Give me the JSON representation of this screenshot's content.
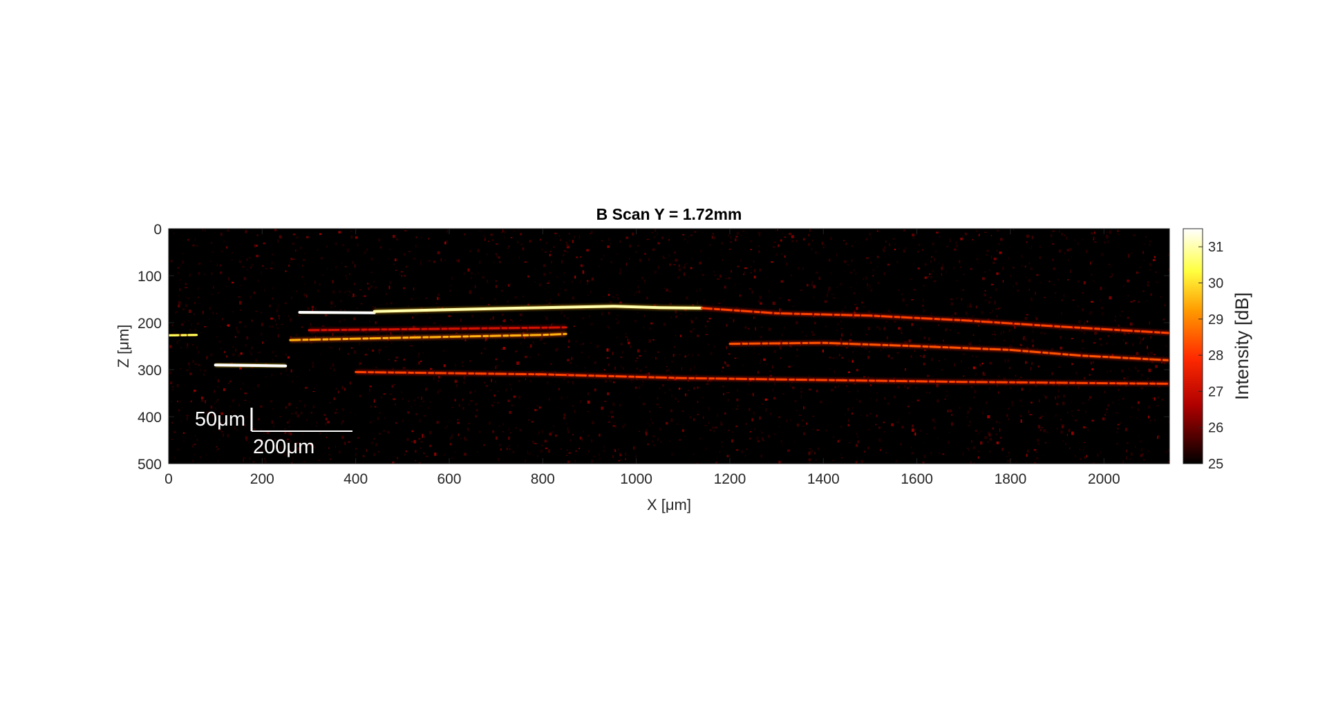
{
  "chart_data": {
    "type": "heatmap",
    "title": "B Scan Y = 1.72mm",
    "xlabel": "X [μm]",
    "ylabel": "Z [μm]",
    "xlim": [
      0,
      2140
    ],
    "ylim": [
      500,
      0
    ],
    "x_ticks": [
      0,
      200,
      400,
      600,
      800,
      1000,
      1200,
      1400,
      1600,
      1800,
      2000
    ],
    "x_tick_labels": [
      "0",
      "200",
      "400",
      "600",
      "800",
      "1000",
      "1200",
      "1400",
      "1600",
      "1800",
      "2000"
    ],
    "y_ticks": [
      0,
      100,
      200,
      300,
      400,
      500
    ],
    "y_tick_labels": [
      "0",
      "100",
      "200",
      "300",
      "400",
      "500"
    ],
    "colormap": "hot",
    "colors": [
      "#000000",
      "#b00000",
      "#ff2a00",
      "#ff9a00",
      "#ffff40",
      "#ffffff"
    ],
    "colorbar": {
      "label": "Intensity [dB]",
      "range": [
        25,
        31.5
      ],
      "ticks": [
        25,
        26,
        27,
        28,
        29,
        30,
        31
      ],
      "tick_labels": [
        "25",
        "26",
        "27",
        "28",
        "29",
        "30",
        "31"
      ],
      "placement": "right"
    },
    "scale_bars": {
      "vertical_label": "50μm",
      "vertical_length_um": 50,
      "horizontal_label": "200μm",
      "horizontal_length_um": 200
    },
    "layers": [
      {
        "points": [
          [
            0,
            227
          ],
          [
            60,
            226
          ]
        ],
        "intensity": 30.5
      },
      {
        "points": [
          [
            100,
            290
          ],
          [
            250,
            292
          ]
        ],
        "intensity": 31.5
      },
      {
        "points": [
          [
            280,
            178
          ],
          [
            440,
            179
          ]
        ],
        "intensity": 31.5
      },
      {
        "points": [
          [
            440,
            176
          ],
          [
            700,
            170
          ],
          [
            950,
            165
          ],
          [
            1050,
            168
          ],
          [
            1140,
            169
          ]
        ],
        "intensity": 31
      },
      {
        "points": [
          [
            1140,
            169
          ],
          [
            1300,
            180
          ],
          [
            1500,
            185
          ],
          [
            1700,
            195
          ],
          [
            1900,
            208
          ],
          [
            2140,
            222
          ]
        ],
        "intensity": 28.2
      },
      {
        "points": [
          [
            300,
            216
          ],
          [
            600,
            213
          ],
          [
            850,
            210
          ]
        ],
        "intensity": 27.2
      },
      {
        "points": [
          [
            260,
            237
          ],
          [
            500,
            232
          ],
          [
            600,
            230
          ],
          [
            800,
            226
          ],
          [
            850,
            224
          ]
        ],
        "intensity": 29.5
      },
      {
        "points": [
          [
            1200,
            245
          ],
          [
            1400,
            243
          ],
          [
            1600,
            250
          ],
          [
            1800,
            258
          ],
          [
            1950,
            270
          ],
          [
            2140,
            280
          ]
        ],
        "intensity": 28.4
      },
      {
        "points": [
          [
            400,
            305
          ],
          [
            800,
            310
          ],
          [
            1100,
            318
          ],
          [
            1400,
            322
          ],
          [
            1700,
            326
          ],
          [
            2140,
            330
          ]
        ],
        "intensity": 28.2
      }
    ]
  }
}
